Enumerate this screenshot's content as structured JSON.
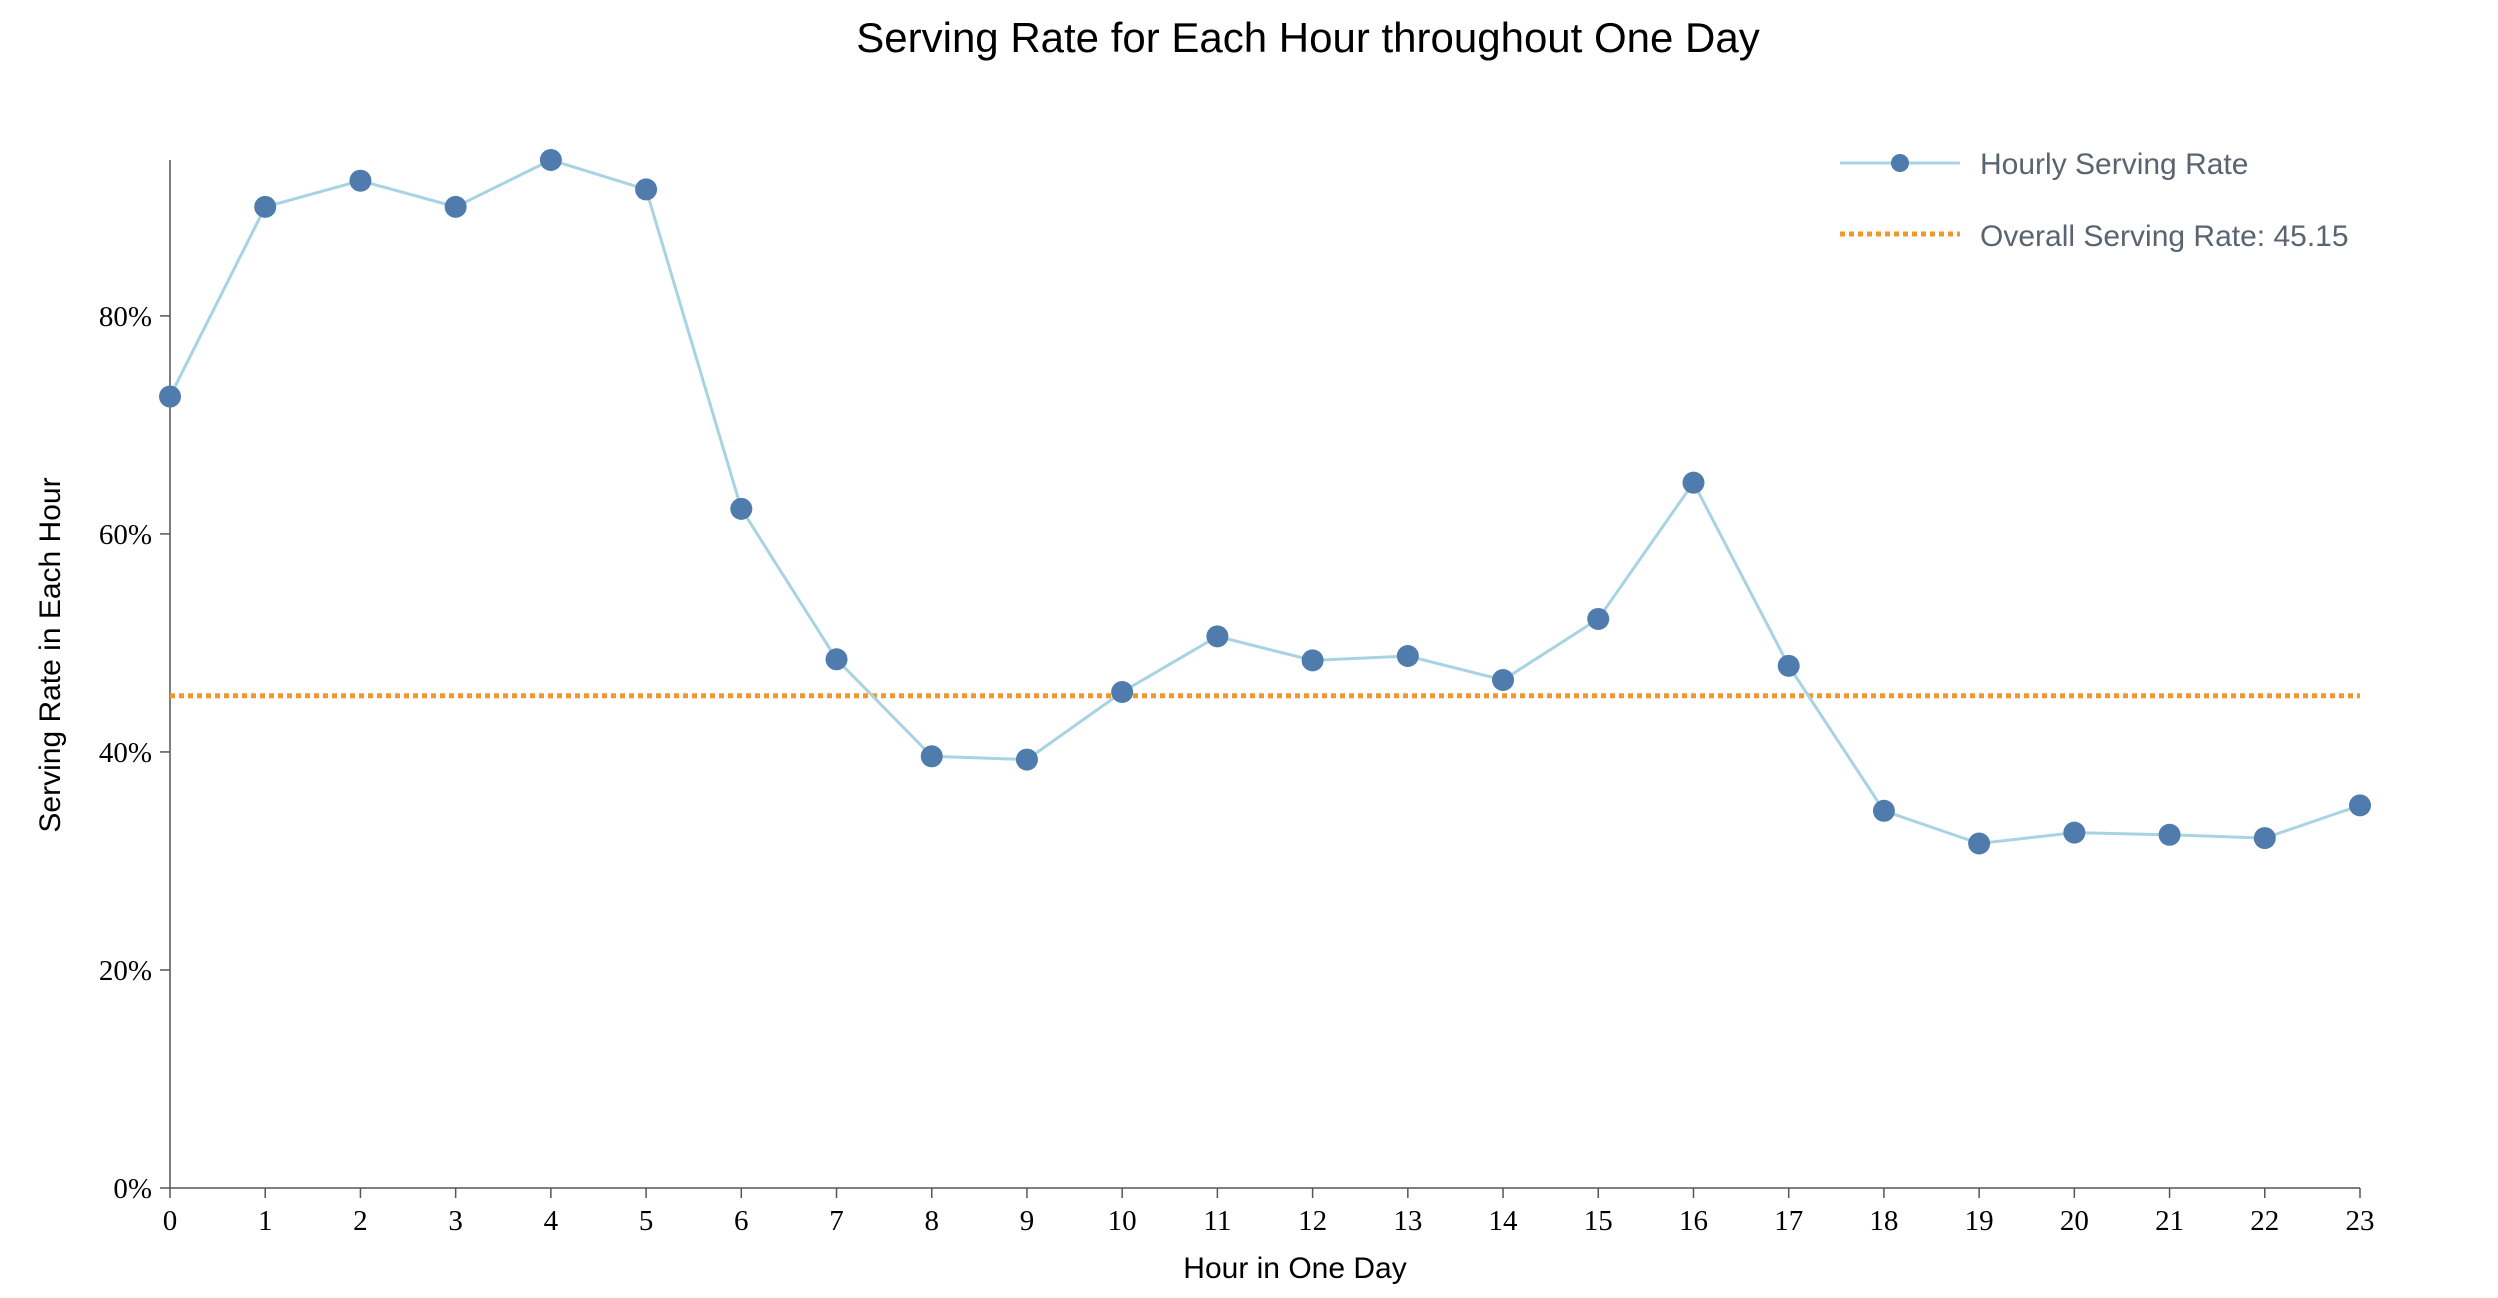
{
  "chart_data": {
    "type": "line",
    "title": "Serving Rate for Each Hour throughout One Day",
    "xlabel": "Hour in One Day",
    "ylabel": "Serving Rate in Each Hour",
    "x": [
      0,
      1,
      2,
      3,
      4,
      5,
      6,
      7,
      8,
      9,
      10,
      11,
      12,
      13,
      14,
      15,
      16,
      17,
      18,
      19,
      20,
      21,
      22,
      23
    ],
    "series": [
      {
        "name": "Hourly Serving Rate",
        "color": "#4f7cad",
        "line_color": "#a8d3e3",
        "values": [
          72.6,
          90.0,
          92.4,
          90.0,
          94.3,
          91.6,
          62.3,
          48.5,
          39.6,
          39.3,
          45.5,
          50.6,
          48.4,
          48.8,
          46.6,
          52.2,
          64.7,
          47.9,
          34.6,
          31.6,
          32.6,
          32.4,
          32.1,
          35.1
        ]
      }
    ],
    "reference_line": {
      "label": "Overall Serving Rate: 45.15",
      "value": 45.15,
      "color": "#f0982f",
      "style": "dotted"
    },
    "x_ticks": [
      "0",
      "1",
      "2",
      "3",
      "4",
      "5",
      "6",
      "7",
      "8",
      "9",
      "10",
      "11",
      "12",
      "13",
      "14",
      "15",
      "16",
      "17",
      "18",
      "19",
      "20",
      "21",
      "22",
      "23"
    ],
    "y_ticks": [
      {
        "value": 0,
        "label": "0%"
      },
      {
        "value": 20,
        "label": "20%"
      },
      {
        "value": 40,
        "label": "40%"
      },
      {
        "value": 60,
        "label": "60%"
      },
      {
        "value": 80,
        "label": "80%"
      }
    ],
    "ylim": [
      0,
      94.3
    ],
    "xlim": [
      0,
      23
    ],
    "grid": false,
    "legend_position": "top-right"
  }
}
